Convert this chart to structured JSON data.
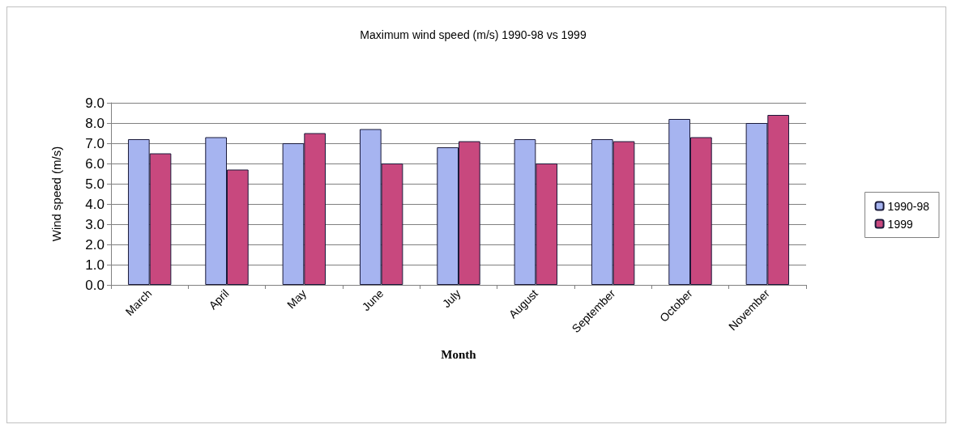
{
  "chart_data": {
    "type": "bar",
    "title": "Maximum wind speed (m/s) 1990-98 vs 1999",
    "xlabel": "Month",
    "ylabel": "Wind speed (m/s)",
    "categories": [
      "March",
      "April",
      "May",
      "June",
      "July",
      "August",
      "September",
      "October",
      "November"
    ],
    "series": [
      {
        "name": "1990-98",
        "color": "#a6b4f0",
        "values": [
          7.2,
          7.3,
          7.0,
          7.7,
          6.8,
          7.2,
          7.2,
          8.2,
          8.0
        ]
      },
      {
        "name": "1999",
        "color": "#c8487e",
        "values": [
          6.5,
          5.7,
          7.5,
          6.0,
          7.1,
          6.0,
          7.1,
          7.3,
          8.4
        ]
      }
    ],
    "ylim": [
      0,
      9
    ],
    "yticks": [
      {
        "value": 0,
        "label": "0.0"
      },
      {
        "value": 1,
        "label": "1.0"
      },
      {
        "value": 2,
        "label": "2.0"
      },
      {
        "value": 3,
        "label": "3.0"
      },
      {
        "value": 4,
        "label": "4.0"
      },
      {
        "value": 5,
        "label": "5.0"
      },
      {
        "value": 6,
        "label": "6.0"
      },
      {
        "value": 7,
        "label": "7.0"
      },
      {
        "value": 8,
        "label": "8.0"
      },
      {
        "value": 9,
        "label": "9.0"
      }
    ],
    "grid": "y",
    "legend": "right"
  }
}
